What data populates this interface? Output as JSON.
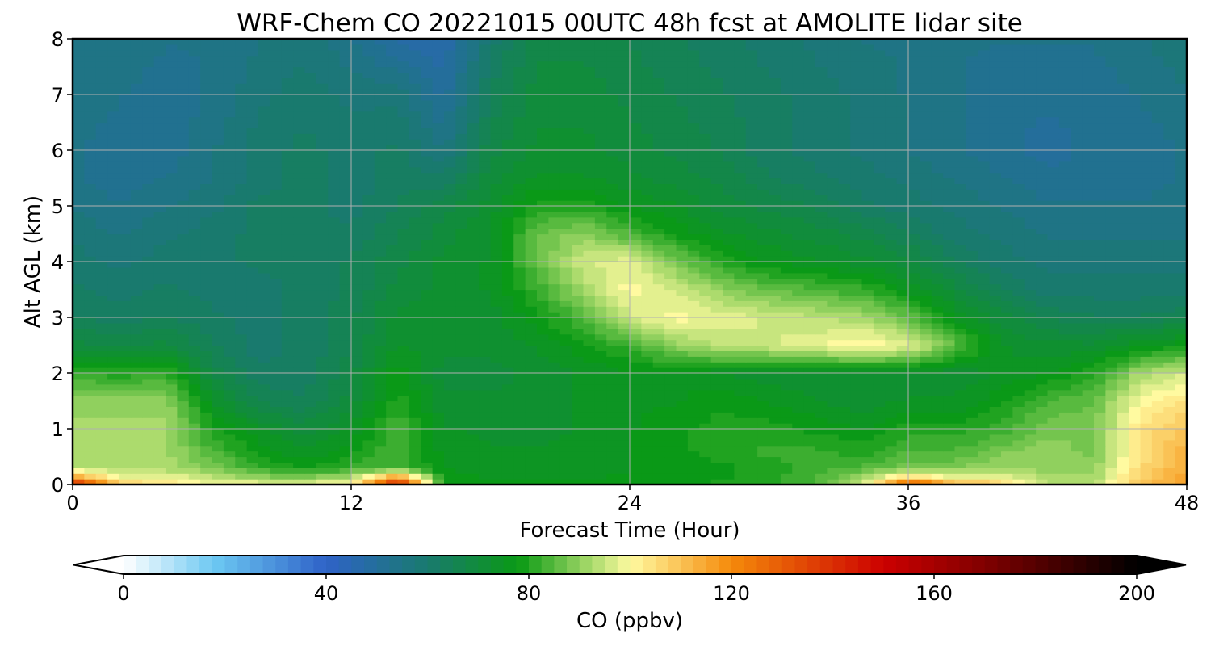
{
  "chart_data": {
    "type": "heatmap",
    "title": "WRF-Chem CO  20221015 00UTC 48h fcst at AMOLITE lidar site",
    "xlabel": "Forecast Time (Hour)",
    "ylabel": "Alt AGL (km)",
    "x_range": [
      0,
      48
    ],
    "y_range": [
      0,
      8
    ],
    "x_ticks": [
      "0",
      "12",
      "24",
      "36",
      "48"
    ],
    "y_ticks": [
      "0",
      "1",
      "2",
      "3",
      "4",
      "5",
      "6",
      "7",
      "8"
    ],
    "grid": true,
    "colorbar": {
      "label": "CO  (ppbv)",
      "range": [
        0,
        200
      ],
      "ticks": [
        "0",
        "40",
        "80",
        "120",
        "160",
        "200"
      ],
      "extend": "both",
      "stops": [
        {
          "value": 0,
          "color": "#ffffff"
        },
        {
          "value": 18,
          "color": "#6cc8f2"
        },
        {
          "value": 40,
          "color": "#2f62c8"
        },
        {
          "value": 60,
          "color": "#197a6e"
        },
        {
          "value": 78,
          "color": "#0a9a14"
        },
        {
          "value": 92,
          "color": "#a6d96a"
        },
        {
          "value": 100,
          "color": "#fffaa0"
        },
        {
          "value": 120,
          "color": "#f58a0a"
        },
        {
          "value": 150,
          "color": "#cc0000"
        },
        {
          "value": 170,
          "color": "#800000"
        },
        {
          "value": 200,
          "color": "#000000"
        }
      ]
    },
    "hours": [
      0,
      2,
      4,
      6,
      8,
      10,
      12,
      14,
      16,
      18,
      20,
      22,
      24,
      26,
      28,
      30,
      32,
      34,
      36,
      38,
      40,
      42,
      44,
      46,
      48
    ],
    "altitudes_km": [
      0,
      0.1,
      0.3,
      0.6,
      1,
      1.5,
      2,
      2.5,
      3,
      3.5,
      4,
      4.5,
      5,
      5.5,
      6,
      7,
      8
    ],
    "co_ppbv": [
      [
        150,
        110,
        105,
        100,
        100,
        100,
        102,
        150,
        78,
        78,
        78,
        78,
        78,
        78,
        80,
        80,
        84,
        95,
        140,
        118,
        110,
        95,
        95,
        110,
        116
      ],
      [
        120,
        100,
        100,
        96,
        92,
        90,
        95,
        125,
        78,
        76,
        76,
        76,
        77,
        78,
        78,
        80,
        84,
        92,
        110,
        100,
        100,
        92,
        92,
        108,
        115
      ],
      [
        94,
        92,
        92,
        88,
        82,
        78,
        82,
        84,
        76,
        74,
        74,
        74,
        76,
        78,
        78,
        80,
        82,
        84,
        88,
        88,
        92,
        90,
        90,
        106,
        114
      ],
      [
        92,
        92,
        92,
        84,
        78,
        74,
        78,
        84,
        75,
        74,
        74,
        74,
        76,
        78,
        80,
        82,
        82,
        80,
        84,
        84,
        88,
        90,
        88,
        104,
        113
      ],
      [
        92,
        92,
        92,
        80,
        74,
        70,
        74,
        84,
        74,
        73,
        73,
        74,
        76,
        78,
        80,
        80,
        78,
        76,
        80,
        80,
        82,
        88,
        88,
        104,
        110
      ],
      [
        90,
        90,
        90,
        74,
        66,
        64,
        70,
        80,
        72,
        72,
        72,
        74,
        76,
        76,
        78,
        76,
        74,
        72,
        74,
        74,
        78,
        84,
        86,
        100,
        104
      ],
      [
        82,
        80,
        82,
        68,
        62,
        62,
        68,
        78,
        70,
        70,
        72,
        74,
        76,
        76,
        74,
        72,
        72,
        72,
        72,
        72,
        74,
        76,
        80,
        92,
        96
      ],
      [
        70,
        68,
        70,
        64,
        60,
        62,
        66,
        74,
        72,
        72,
        74,
        78,
        82,
        90,
        94,
        96,
        98,
        102,
        98,
        86,
        74,
        72,
        72,
        76,
        78
      ],
      [
        64,
        62,
        64,
        62,
        60,
        62,
        66,
        72,
        72,
        72,
        78,
        84,
        96,
        100,
        98,
        96,
        94,
        92,
        86,
        76,
        70,
        66,
        64,
        64,
        66
      ],
      [
        62,
        60,
        62,
        60,
        60,
        62,
        64,
        70,
        72,
        74,
        82,
        92,
        100,
        96,
        90,
        86,
        84,
        82,
        76,
        70,
        64,
        60,
        60,
        60,
        60
      ],
      [
        60,
        58,
        60,
        60,
        62,
        62,
        64,
        68,
        72,
        74,
        86,
        96,
        98,
        88,
        80,
        76,
        74,
        72,
        70,
        64,
        60,
        58,
        58,
        58,
        58
      ],
      [
        58,
        56,
        58,
        60,
        62,
        62,
        62,
        66,
        70,
        74,
        86,
        90,
        84,
        78,
        74,
        72,
        70,
        68,
        64,
        60,
        58,
        56,
        56,
        56,
        56
      ],
      [
        56,
        54,
        56,
        58,
        62,
        62,
        60,
        64,
        68,
        72,
        80,
        80,
        76,
        74,
        70,
        68,
        66,
        62,
        60,
        58,
        56,
        54,
        54,
        54,
        56
      ],
      [
        54,
        52,
        54,
        56,
        60,
        62,
        60,
        62,
        62,
        70,
        74,
        74,
        72,
        70,
        68,
        64,
        62,
        60,
        58,
        56,
        54,
        52,
        52,
        52,
        54
      ],
      [
        54,
        52,
        52,
        56,
        60,
        62,
        60,
        62,
        56,
        68,
        72,
        72,
        70,
        68,
        66,
        62,
        60,
        58,
        56,
        54,
        52,
        50,
        52,
        52,
        54
      ],
      [
        56,
        54,
        52,
        54,
        58,
        60,
        58,
        58,
        50,
        64,
        70,
        70,
        68,
        66,
        64,
        62,
        60,
        58,
        56,
        54,
        52,
        52,
        52,
        54,
        56
      ],
      [
        56,
        56,
        54,
        54,
        56,
        58,
        54,
        48,
        46,
        60,
        68,
        68,
        66,
        64,
        62,
        60,
        58,
        56,
        56,
        54,
        54,
        54,
        54,
        56,
        58
      ]
    ]
  }
}
